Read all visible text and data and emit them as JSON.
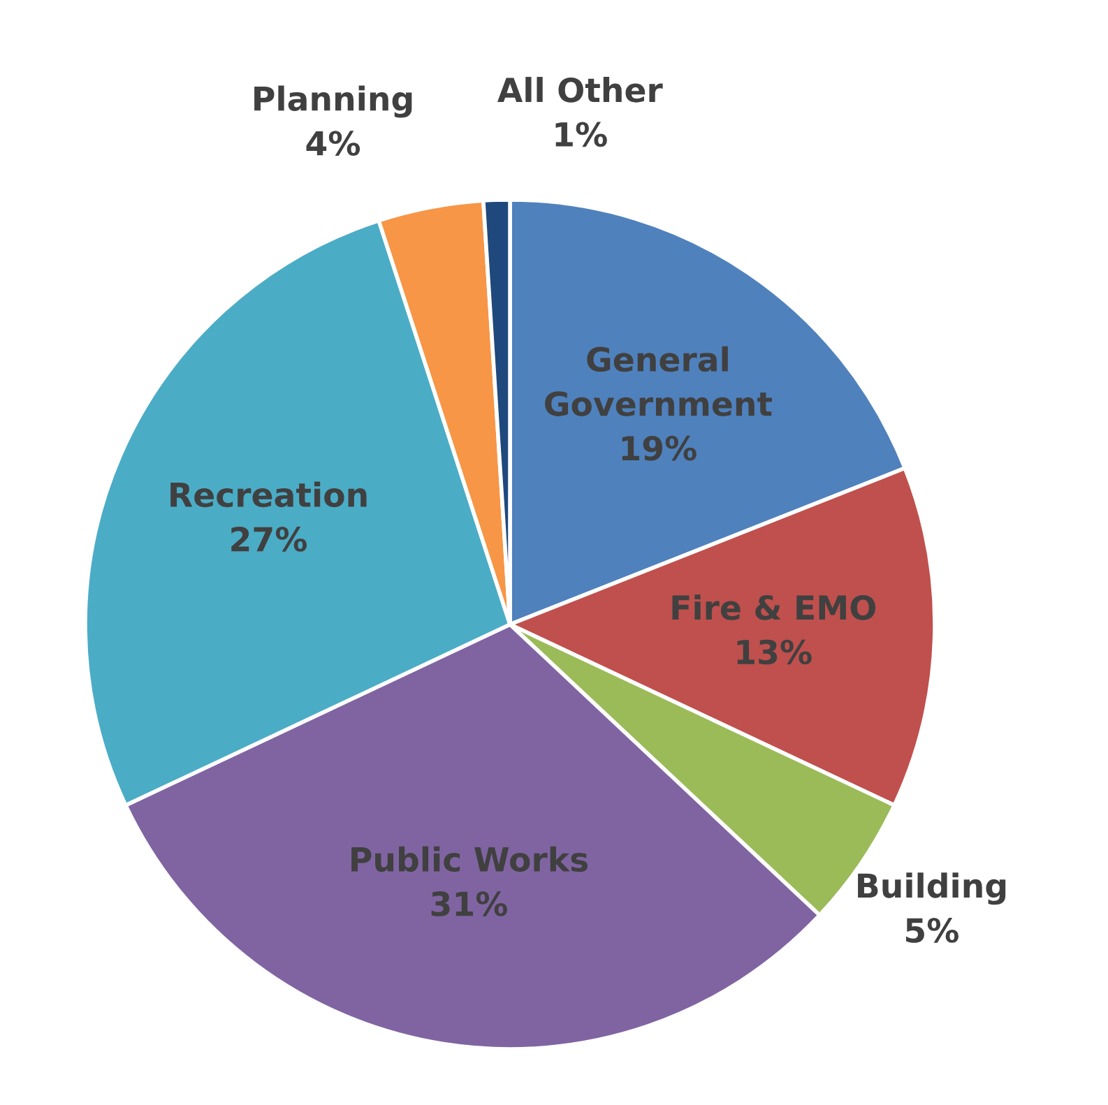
{
  "chart_data": {
    "type": "pie",
    "categories": [
      "General Government",
      "Fire & EMO",
      "Building",
      "Public Works",
      "Recreation",
      "Planning",
      "All Other"
    ],
    "values": [
      19,
      13,
      5,
      31,
      27,
      4,
      1
    ],
    "value_labels": [
      "19%",
      "13%",
      "5%",
      "31%",
      "27%",
      "4%",
      "1%"
    ],
    "colors": [
      "#4f81bd",
      "#c0504d",
      "#9bbb59",
      "#8064a2",
      "#4bacc6",
      "#f79646",
      "#1f497d"
    ]
  }
}
